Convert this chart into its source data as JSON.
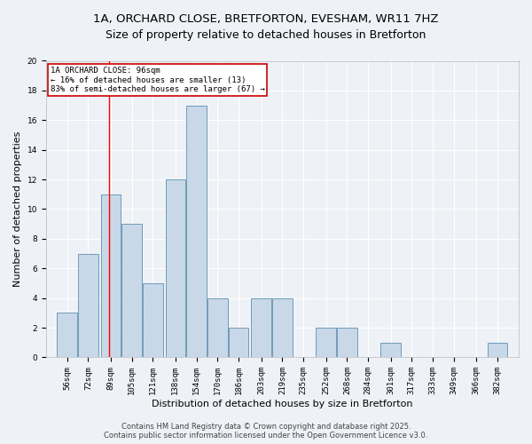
{
  "title_line1": "1A, ORCHARD CLOSE, BRETFORTON, EVESHAM, WR11 7HZ",
  "title_line2": "Size of property relative to detached houses in Bretforton",
  "xlabel": "Distribution of detached houses by size in Bretforton",
  "ylabel": "Number of detached properties",
  "bin_labels": [
    "56sqm",
    "72sqm",
    "89sqm",
    "105sqm",
    "121sqm",
    "138sqm",
    "154sqm",
    "170sqm",
    "186sqm",
    "203sqm",
    "219sqm",
    "235sqm",
    "252sqm",
    "268sqm",
    "284sqm",
    "301sqm",
    "317sqm",
    "333sqm",
    "349sqm",
    "366sqm",
    "382sqm"
  ],
  "bin_edges": [
    56,
    72,
    89,
    105,
    121,
    138,
    154,
    170,
    186,
    203,
    219,
    235,
    252,
    268,
    284,
    301,
    317,
    333,
    349,
    366,
    382
  ],
  "bar_heights": [
    3,
    7,
    11,
    9,
    5,
    12,
    17,
    4,
    2,
    4,
    4,
    0,
    2,
    2,
    0,
    1,
    0,
    0,
    0,
    0,
    1
  ],
  "bar_color": "#c8d8e8",
  "bar_edge_color": "#6090b0",
  "red_line_x": 96,
  "annotation_line1": "1A ORCHARD CLOSE: 96sqm",
  "annotation_line2": "← 16% of detached houses are smaller (13)",
  "annotation_line3": "83% of semi-detached houses are larger (67) →",
  "annotation_box_color": "#ffffff",
  "annotation_box_edge": "#cc0000",
  "ylim": [
    0,
    20
  ],
  "yticks": [
    0,
    2,
    4,
    6,
    8,
    10,
    12,
    14,
    16,
    18,
    20
  ],
  "footer_line1": "Contains HM Land Registry data © Crown copyright and database right 2025.",
  "footer_line2": "Contains public sector information licensed under the Open Government Licence v3.0.",
  "bg_color": "#eef2f7",
  "grid_color": "#ffffff",
  "title_fontsize": 9.5,
  "axis_label_fontsize": 8,
  "tick_fontsize": 6.5,
  "annotation_fontsize": 6.5,
  "footer_fontsize": 6,
  "ylabel_fontsize": 8
}
